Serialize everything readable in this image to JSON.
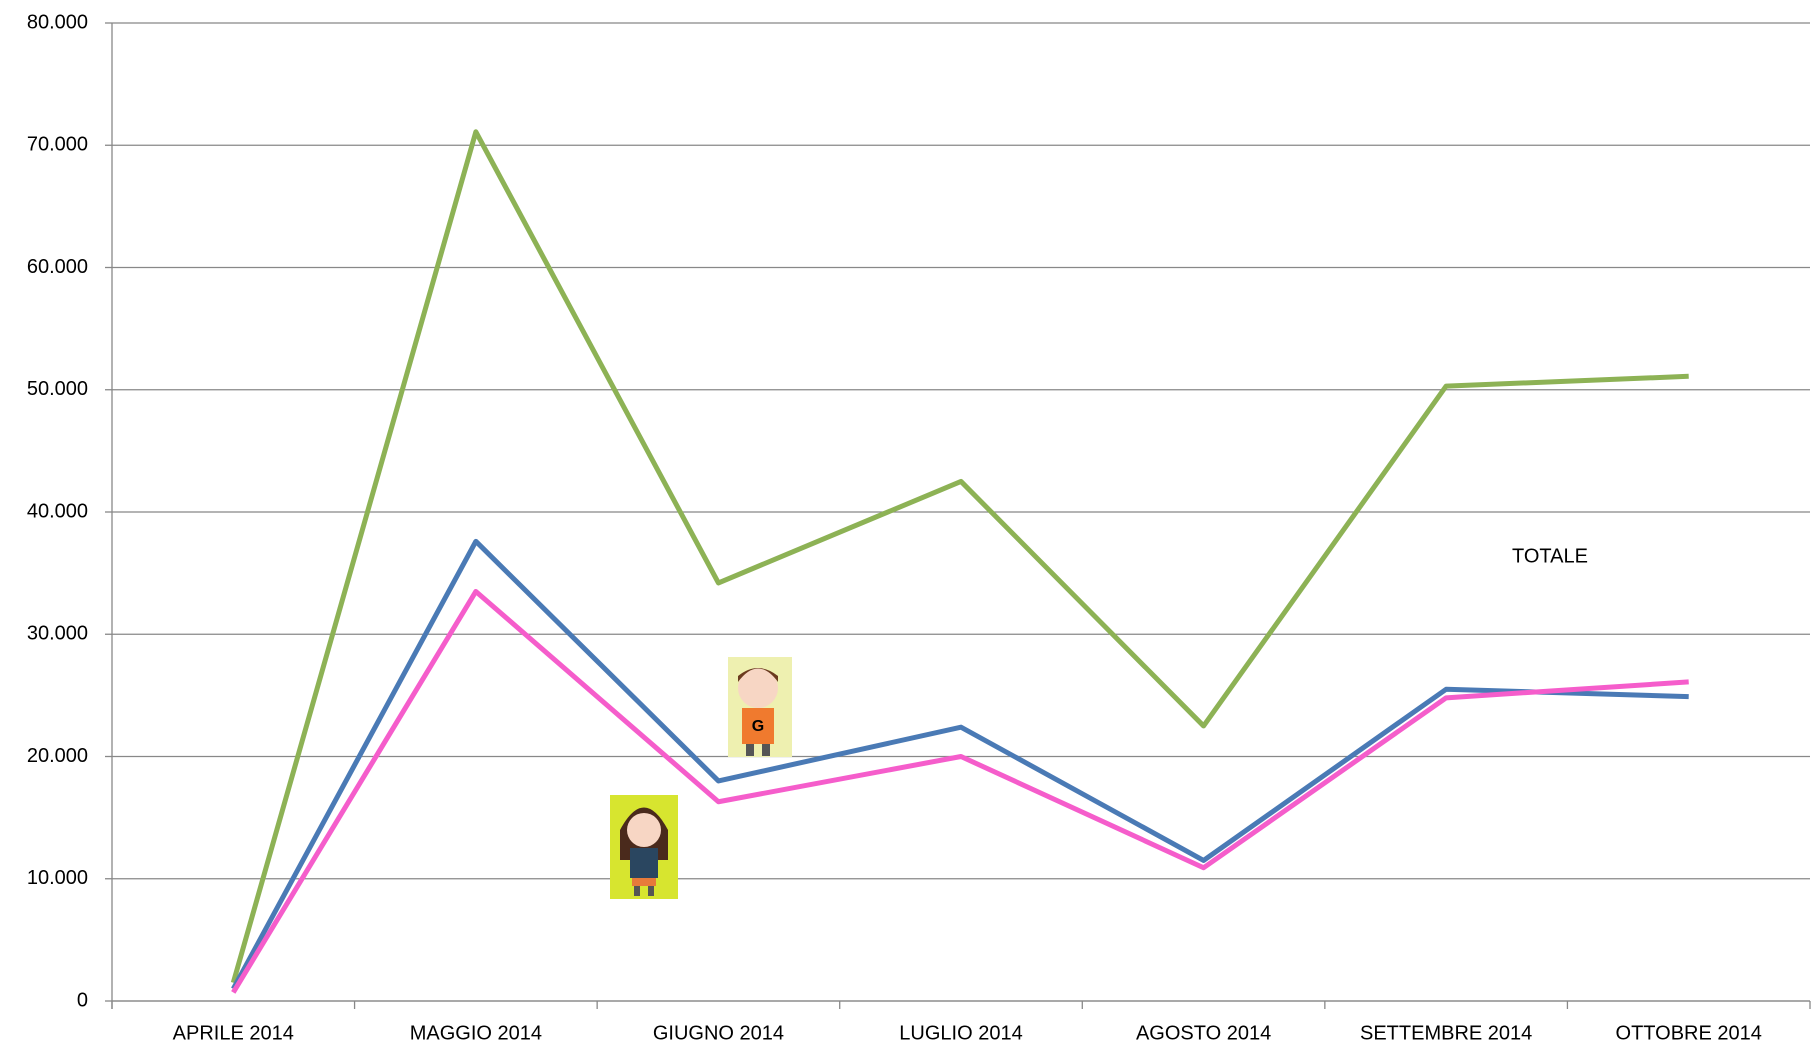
{
  "chart_data": {
    "type": "line",
    "categories": [
      "APRILE 2014",
      "MAGGIO 2014",
      "GIUGNO 2014",
      "LUGLIO 2014",
      "AGOSTO 2014",
      "SETTEMBRE 2014",
      "OTTOBRE 2014"
    ],
    "series": [
      {
        "name": "TOTALE",
        "color": "#8db255",
        "values": [
          1500,
          71100,
          34200,
          42500,
          22500,
          50300,
          51100
        ]
      },
      {
        "color": "#4a7ab5",
        "values": [
          1000,
          37600,
          18000,
          22400,
          11500,
          25500,
          24900
        ]
      },
      {
        "color": "#f55dcb",
        "values": [
          700,
          33500,
          16300,
          20000,
          10900,
          24800,
          26100
        ]
      }
    ],
    "ylim": [
      0,
      80000
    ],
    "yticks": [
      0,
      {
        "value": 10000,
        "label": "10.000"
      },
      {
        "value": 20000,
        "label": "20.000"
      },
      {
        "value": 30000,
        "label": "30.000"
      },
      {
        "value": 40000,
        "label": "40.000"
      },
      {
        "value": 50000,
        "label": "50.000"
      },
      {
        "value": 60000,
        "label": "60.000"
      },
      {
        "value": 70000,
        "label": "70.000"
      },
      {
        "value": 80000,
        "label": "80.000"
      }
    ],
    "grid": true
  }
}
